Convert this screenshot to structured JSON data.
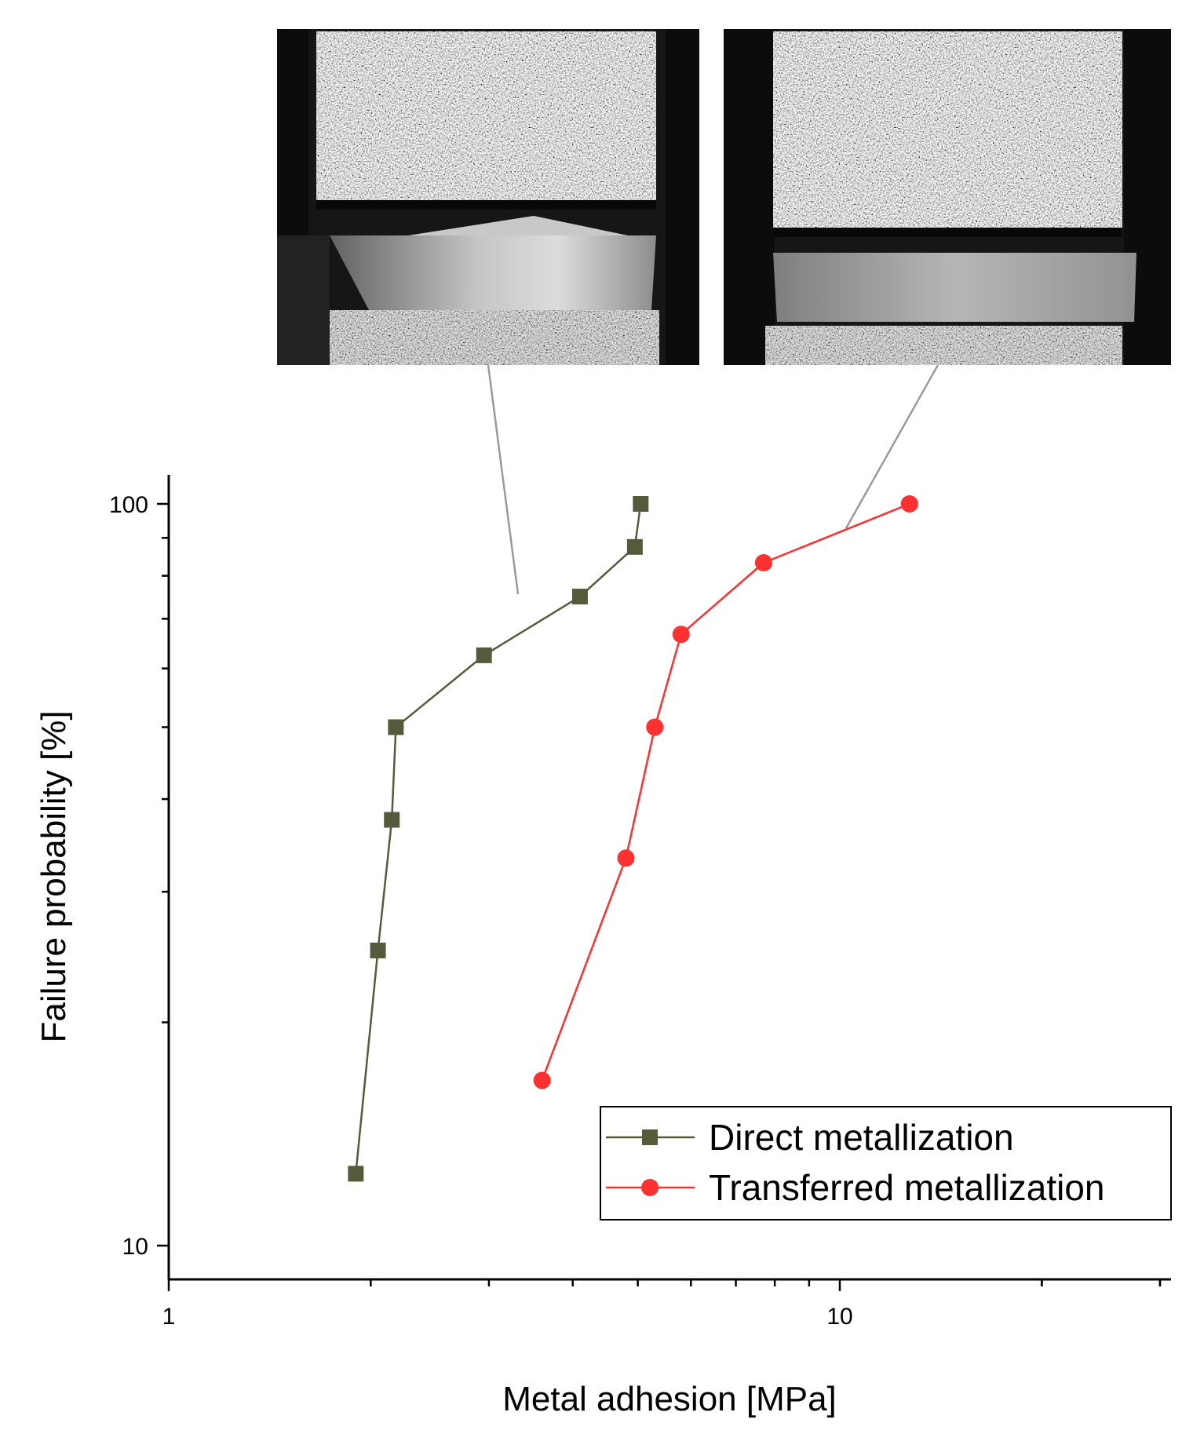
{
  "chart_data": {
    "type": "line",
    "xlabel": "Metal adhesion [MPa]",
    "ylabel": "Failure probability [%]",
    "xscale": "log",
    "yscale": "log",
    "xlim": [
      1,
      30
    ],
    "ylim": [
      9,
      110
    ],
    "xticks": [
      1,
      10
    ],
    "yticks": [
      10,
      100
    ],
    "legend_position": "bottom-right",
    "grid": false,
    "series": [
      {
        "name": "Direct metallization",
        "marker": "square",
        "color": "#555a3a",
        "x": [
          1.9,
          2.05,
          2.15,
          2.18,
          2.95,
          4.1,
          4.95,
          5.05
        ],
        "y": [
          12.5,
          25,
          37.5,
          50,
          62.5,
          75,
          87.5,
          100
        ]
      },
      {
        "name": "Transferred metallization",
        "marker": "circle",
        "color": "#ff3030",
        "x": [
          3.6,
          4.8,
          5.3,
          5.8,
          7.7,
          12.7
        ],
        "y": [
          16.7,
          33.3,
          50,
          66.7,
          83.3,
          100
        ]
      }
    ]
  },
  "photos": [
    {
      "depicts": "Direct metallization"
    },
    {
      "depicts": "Transferred metallization"
    }
  ]
}
